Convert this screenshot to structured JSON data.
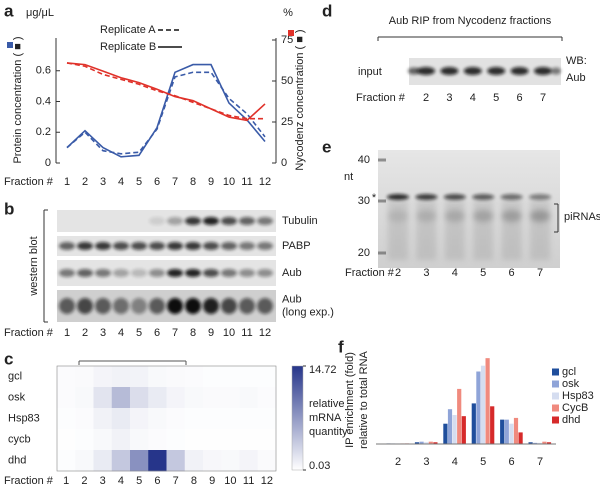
{
  "chart_data": [
    {
      "type": "line",
      "panel": "a",
      "unit": "μg/μL",
      "y2unit": "%",
      "ylabel": "Protein concentration ( ■ )",
      "y2label": "Nycodenz concentration ( ■ )",
      "xlabel": "Fraction #",
      "categories": [
        "1",
        "2",
        "3",
        "4",
        "5",
        "6",
        "7",
        "8",
        "9",
        "10",
        "11",
        "12"
      ],
      "ylim": [
        0,
        0.8
      ],
      "yticks": [
        0,
        0.2,
        0.4,
        0.6
      ],
      "y2lim": [
        0,
        75
      ],
      "y2ticks": [
        0,
        25,
        50,
        75
      ],
      "series": [
        {
          "name": "Replicate A",
          "color": "#3a5ba8",
          "style": "dashed",
          "values": [
            0.1,
            0.2,
            0.08,
            0.06,
            0.07,
            0.22,
            0.56,
            0.59,
            0.59,
            0.42,
            0.32,
            0.17
          ]
        },
        {
          "name": "Replicate B",
          "color": "#3a5ba8",
          "style": "solid",
          "values": [
            0.1,
            0.21,
            0.1,
            0.04,
            0.05,
            0.23,
            0.59,
            0.64,
            0.64,
            0.39,
            0.28,
            0.14
          ]
        },
        {
          "name": "Replicate A",
          "color": "#e0322a",
          "style": "dashed",
          "axis": "y2",
          "values": [
            61,
            59,
            54,
            51,
            48,
            44,
            41,
            37,
            33,
            29,
            27,
            27
          ]
        },
        {
          "name": "Replicate B",
          "color": "#e0322a",
          "style": "solid",
          "axis": "y2",
          "values": [
            61,
            60,
            56,
            52,
            49,
            45,
            40.5,
            38,
            33,
            28,
            26,
            36
          ]
        }
      ]
    },
    {
      "type": "heatmap",
      "panel": "c",
      "rows": [
        "gcl",
        "osk",
        "Hsp83",
        "cycb",
        "dhd"
      ],
      "categories": [
        "1",
        "2",
        "3",
        "4",
        "5",
        "6",
        "7",
        "8",
        "9",
        "10",
        "11",
        "12"
      ],
      "xlabel": "Fraction #",
      "values": [
        [
          0.3,
          0.4,
          0.8,
          1.0,
          0.9,
          0.5,
          0.4,
          0.3,
          0.2,
          0.2,
          0.2,
          0.2
        ],
        [
          0.3,
          0.5,
          2.0,
          5.0,
          2.5,
          1.5,
          0.8,
          0.5,
          0.4,
          0.4,
          0.5,
          0.3
        ],
        [
          0.2,
          0.3,
          1.0,
          1.5,
          0.8,
          0.5,
          0.3,
          0.2,
          0.2,
          0.2,
          0.2,
          0.2
        ],
        [
          0.1,
          0.2,
          0.5,
          1.0,
          0.5,
          0.3,
          0.2,
          0.1,
          0.1,
          0.1,
          0.1,
          0.1
        ],
        [
          0.2,
          0.5,
          1.5,
          4.0,
          8.0,
          14.72,
          4.0,
          1.0,
          0.6,
          0.5,
          0.8,
          0.4
        ]
      ],
      "clim": [
        0.03,
        14.72
      ],
      "cticks": [
        0.03,
        14.72
      ],
      "colors": [
        "#ffffff",
        "#26358a"
      ],
      "colorbar_label": [
        "relative",
        "mRNA",
        "quantity"
      ]
    },
    {
      "type": "bar",
      "panel": "f",
      "ylabel": [
        "IP enrichment (fold)",
        "relative to total RNA"
      ],
      "categories": [
        "2",
        "3",
        "4",
        "5",
        "6",
        "7"
      ],
      "series": [
        {
          "name": "gcl",
          "color": "#1f4e9c",
          "values": [
            0.1,
            0.3,
            3.5,
            7.0,
            4.2,
            0.3
          ]
        },
        {
          "name": "osk",
          "color": "#8fa4d8",
          "values": [
            0.1,
            0.4,
            6.0,
            12.5,
            4.2,
            0.2
          ]
        },
        {
          "name": "Hsp83",
          "color": "#d5ddf0",
          "values": [
            0.1,
            0.3,
            5.0,
            13.5,
            3.5,
            0.2
          ]
        },
        {
          "name": "CycB",
          "color": "#f08a7e",
          "values": [
            0.1,
            0.4,
            9.5,
            14.8,
            4.5,
            0.4
          ]
        },
        {
          "name": "dhd",
          "color": "#d62a2a",
          "values": [
            0.1,
            0.3,
            4.8,
            6.5,
            2.0,
            0.3
          ]
        }
      ]
    }
  ],
  "western_blot": {
    "panel": "b",
    "side_label": "western blot",
    "bands": [
      [
        "Tubulin"
      ],
      [
        "PABP"
      ],
      [
        "Aub"
      ],
      [
        "Aub",
        "(long exp.)"
      ]
    ],
    "xlabel": "Fraction #",
    "lanes": [
      "1",
      "2",
      "3",
      "4",
      "5",
      "6",
      "7",
      "8",
      "9",
      "10",
      "11",
      "12"
    ]
  },
  "rip_blot": {
    "panel": "d",
    "title": "Aub RIP from Nycodenz fractions",
    "row_label": "input",
    "antibody": [
      "WB:",
      "Aub"
    ],
    "xlabel": "Fraction #",
    "lanes": [
      "2",
      "3",
      "4",
      "5",
      "6",
      "7"
    ]
  },
  "gel": {
    "panel": "e",
    "unit": "nt",
    "markers": [
      "40",
      "30",
      "20"
    ],
    "star": "*",
    "band_label": "piRNAs",
    "xlabel": "Fraction #",
    "lanes": [
      "2",
      "3",
      "4",
      "5",
      "6",
      "7"
    ]
  }
}
